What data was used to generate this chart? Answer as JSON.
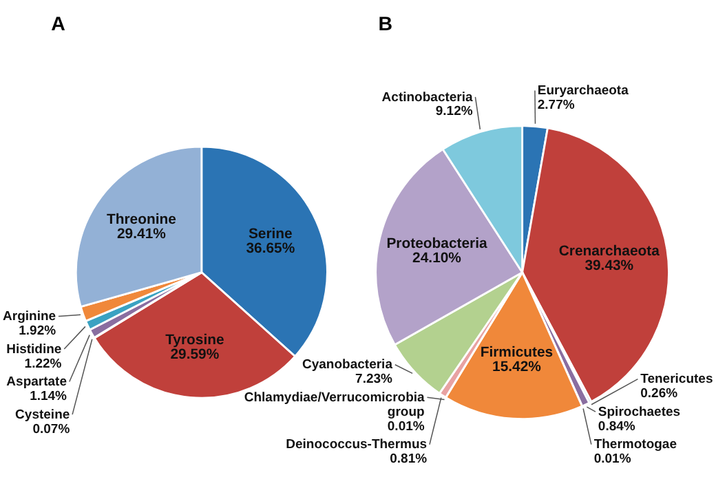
{
  "chart_data": [
    {
      "type": "pie",
      "title": "A",
      "categories": [
        "Serine",
        "Tyrosine",
        "Cysteine",
        "Aspartate",
        "Histidine",
        "Arginine",
        "Threonine"
      ],
      "values": [
        36.65,
        29.59,
        0.07,
        1.14,
        1.22,
        1.92,
        29.41
      ],
      "value_labels": [
        "36.65%",
        "29.59%",
        "0.07%",
        "1.14%",
        "1.22%",
        "1.92%",
        "29.41%"
      ],
      "colors": [
        "#2b74b4",
        "#c0403b",
        "#7b9b4a",
        "#8a6ea0",
        "#3aa2c2",
        "#f0883a",
        "#93b1d6"
      ]
    },
    {
      "type": "pie",
      "title": "B",
      "categories": [
        "Euryarchaeota",
        "Crenarchaeota",
        "Tenericutes",
        "Spirochaetes",
        "Thermotogae",
        "Firmicutes",
        "Chlamydiae/Verrucomicrobia group",
        "Deinococcus-Thermus",
        "Cyanobacteria",
        "Proteobacteria",
        "Actinobacteria"
      ],
      "values": [
        2.77,
        39.43,
        0.26,
        0.84,
        0.01,
        15.42,
        0.01,
        0.81,
        7.23,
        24.1,
        9.12
      ],
      "value_labels": [
        "2.77%",
        "39.43%",
        "0.26%",
        "0.84%",
        "0.01%",
        "15.42%",
        "0.01%",
        "0.81%",
        "7.23%",
        "24.10%",
        "9.12%"
      ],
      "colors": [
        "#2b74b4",
        "#c0403b",
        "#9dc3e0",
        "#8a6ea0",
        "#4a9bb8",
        "#f0883a",
        "#d99a9a",
        "#e8a2a2",
        "#b3d18f",
        "#b3a2c9",
        "#7ec9dd"
      ]
    }
  ]
}
